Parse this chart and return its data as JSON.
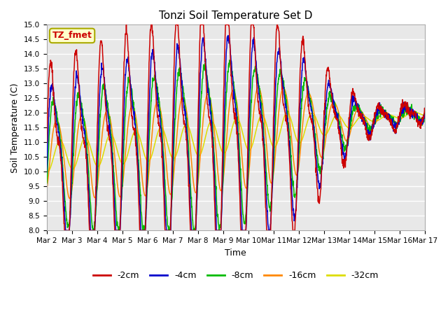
{
  "title": "Tonzi Soil Temperature Set D",
  "xlabel": "Time",
  "ylabel": "Soil Temperature (C)",
  "ylim": [
    8.0,
    15.0
  ],
  "yticks": [
    8.0,
    8.5,
    9.0,
    9.5,
    10.0,
    10.5,
    11.0,
    11.5,
    12.0,
    12.5,
    13.0,
    13.5,
    14.0,
    14.5,
    15.0
  ],
  "xtick_labels": [
    "Mar 2",
    "Mar 3",
    "Mar 4",
    "Mar 5",
    "Mar 6",
    "Mar 7",
    "Mar 8",
    "Mar 9",
    "Mar 10",
    "Mar 11",
    "Mar 12",
    "Mar 13",
    "Mar 14",
    "Mar 15",
    "Mar 16",
    "Mar 17"
  ],
  "legend_entries": [
    "-2cm",
    "-4cm",
    "-8cm",
    "-16cm",
    "-32cm"
  ],
  "line_colors": [
    "#cc0000",
    "#0000cc",
    "#00bb00",
    "#ff8800",
    "#dddd00"
  ],
  "annotation_text": "TZ_fmet",
  "annotation_color": "#cc0000",
  "annotation_bg": "#ffffcc",
  "background_color": "#e8e8e8",
  "n_points": 1500,
  "days": 15
}
